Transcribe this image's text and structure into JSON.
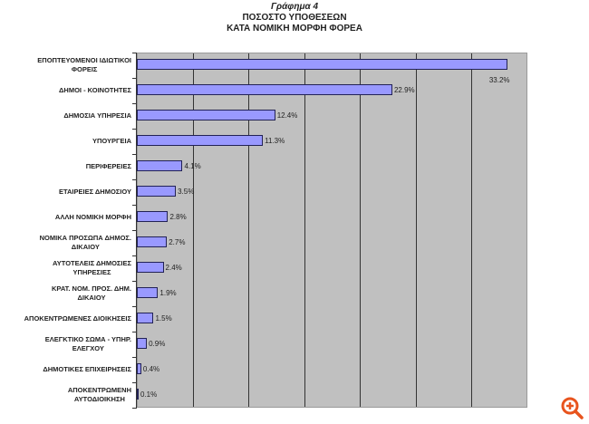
{
  "chart_data": {
    "type": "bar",
    "orientation": "horizontal",
    "title": "Γράφημα 4",
    "subtitle_lines": [
      "ΠΟΣΟΣΤΟ ΥΠΟΘΕΣΕΩΝ",
      "ΚΑΤΑ ΝΟΜΙΚΗ ΜΟΡΦΗ ΦΟΡΕΑ"
    ],
    "categories": [
      "ΕΠΟΠΤΕΥΟΜΕΝΟΙ ΙΔΙΩΤΙΚΟΙ ΦΟΡΕΙΣ",
      "ΔΗΜΟΙ - ΚΟΙΝΟΤΗΤΕΣ",
      "ΔΗΜΟΣΙΑ ΥΠΗΡΕΣΙΑ",
      "ΥΠΟΥΡΓΕΙΑ",
      "ΠΕΡΙΦΕΡΕΙΕΣ",
      "ΕΤΑΙΡΕΙΕΣ ΔΗΜΟΣΙΟΥ",
      "ΑΛΛΗ ΝΟΜΙΚΗ ΜΟΡΦΗ",
      "ΝΟΜΙΚΑ ΠΡΟΣΩΠΑ ΔΗΜΟΣ. ΔΙΚΑΙΟΥ",
      "ΑΥΤΟΤΕΛΕΙΣ ΔΗΜΟΣΙΕΣ ΥΠΗΡΕΣΙΕΣ",
      "ΚΡΑΤ. ΝΟΜ. ΠΡΟΣ. ΔΗΜ. ΔΙΚΑΙΟΥ",
      "ΑΠΟΚΕΝΤΡΩΜΕΝΕΣ ΔΙΟΙΚΗΣΕΙΣ",
      "ΕΛΕΓΚΤΙΚΟ ΣΩΜΑ - ΥΠΗΡ. ΕΛΕΓΧΟΥ",
      "ΔΗΜΟΤΙΚΕΣ ΕΠΙΧΕΙΡΗΣΕΙΣ",
      "ΑΠΟΚΕΝΤΡΩΜΕΝΗ ΑΥΤΟΔΙΟΙΚΗΣΗ"
    ],
    "category_lines": [
      [
        "ΕΠΟΠΤΕΥΟΜΕΝΟΙ ΙΔΙΩΤΙΚΟΙ",
        "ΦΟΡΕΙΣ"
      ],
      [
        "ΔΗΜΟΙ - ΚΟΙΝΟΤΗΤΕΣ"
      ],
      [
        "ΔΗΜΟΣΙΑ ΥΠΗΡΕΣΙΑ"
      ],
      [
        "ΥΠΟΥΡΓΕΙΑ"
      ],
      [
        "ΠΕΡΙΦΕΡΕΙΕΣ"
      ],
      [
        "ΕΤΑΙΡΕΙΕΣ ΔΗΜΟΣΙΟΥ"
      ],
      [
        "ΑΛΛΗ ΝΟΜΙΚΗ ΜΟΡΦΗ"
      ],
      [
        "ΝΟΜΙΚΑ ΠΡΟΣΩΠΑ ΔΗΜΟΣ.",
        "ΔΙΚΑΙΟΥ"
      ],
      [
        "ΑΥΤΟΤΕΛΕΙΣ ΔΗΜΟΣΙΕΣ",
        "ΥΠΗΡΕΣΙΕΣ"
      ],
      [
        "ΚΡΑΤ. ΝΟΜ. ΠΡΟΣ. ΔΗΜ.",
        "ΔΙΚΑΙΟΥ"
      ],
      [
        "ΑΠΟΚΕΝΤΡΩΜΕΝΕΣ ΔΙΟΙΚΗΣΕΙΣ"
      ],
      [
        "ΕΛΕΓΚΤΙΚΟ ΣΩΜΑ - ΥΠΗΡ.",
        "ΕΛΕΓΧΟΥ"
      ],
      [
        "ΔΗΜΟΤΙΚΕΣ ΕΠΙΧΕΙΡΗΣΕΙΣ"
      ],
      [
        "ΑΠΟΚΕΝΤΡΩΜΕΝΗ",
        "ΑΥΤΟΔΙΟΙΚΗΣΗ"
      ]
    ],
    "values": [
      33.2,
      22.9,
      12.4,
      11.3,
      4.1,
      3.5,
      2.8,
      2.7,
      2.4,
      1.9,
      1.5,
      0.9,
      0.4,
      0.1
    ],
    "value_labels": [
      "33.2%",
      "22.9%",
      "12.4%",
      "11.3%",
      "4.1%",
      "3.5%",
      "2.8%",
      "2.7%",
      "2.4%",
      "1.9%",
      "1.5%",
      "0.9%",
      "0.4%",
      "0.1%"
    ],
    "xlabel": "",
    "ylabel": "",
    "xlim": [
      0,
      35
    ],
    "x_gridlines": [
      5,
      10,
      15,
      20,
      25,
      30
    ],
    "x_tick_labels_visible": false,
    "grid": true,
    "legend": "none",
    "colors": {
      "bar_fill": "#9999ff",
      "bar_border": "#222255",
      "plot_bg": "#c0c0c0",
      "gridline": "#333333"
    }
  },
  "ui": {
    "zoom_icon": "zoom-in-icon",
    "zoom_color": "#e8541e"
  }
}
